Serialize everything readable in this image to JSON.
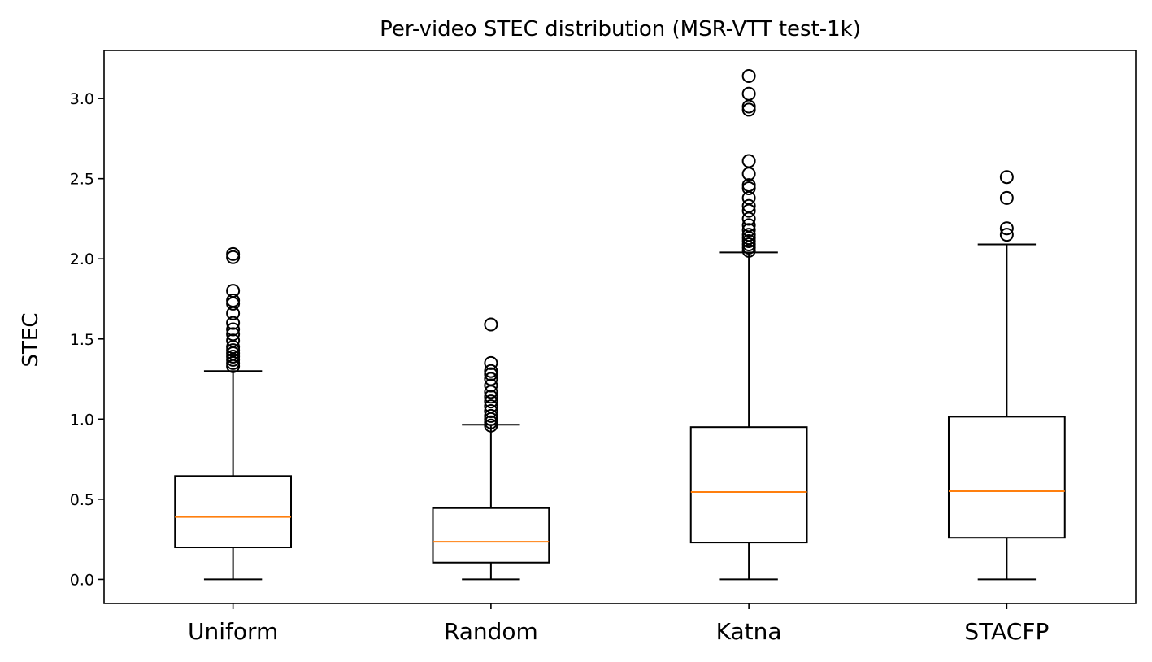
{
  "chart_data": {
    "type": "box",
    "title": "Per-video STEC distribution (MSR-VTT test-1k)",
    "xlabel": "",
    "ylabel": "STEC",
    "ylim": [
      -0.15,
      3.3
    ],
    "yticks": [
      0.0,
      0.5,
      1.0,
      1.5,
      2.0,
      2.5,
      3.0
    ],
    "ytick_labels": [
      "0.0",
      "0.5",
      "1.0",
      "1.5",
      "2.0",
      "2.5",
      "3.0"
    ],
    "categories": [
      "Uniform",
      "Random",
      "Katna",
      "STACFP"
    ],
    "boxes": [
      {
        "name": "Uniform",
        "whisker_low": 0.0,
        "q1": 0.2,
        "median": 0.39,
        "q3": 0.645,
        "whisker_high": 1.3,
        "outliers": [
          1.33,
          1.35,
          1.37,
          1.39,
          1.41,
          1.43,
          1.45,
          1.49,
          1.53,
          1.56,
          1.6,
          1.66,
          1.72,
          1.74,
          1.8,
          2.01,
          2.03
        ]
      },
      {
        "name": "Random",
        "whisker_low": 0.0,
        "q1": 0.105,
        "median": 0.235,
        "q3": 0.445,
        "whisker_high": 0.965,
        "outliers": [
          0.96,
          0.98,
          1.0,
          1.02,
          1.05,
          1.08,
          1.11,
          1.14,
          1.17,
          1.21,
          1.25,
          1.28,
          1.3,
          1.35,
          1.59
        ]
      },
      {
        "name": "Katna",
        "whisker_low": 0.0,
        "q1": 0.23,
        "median": 0.545,
        "q3": 0.95,
        "whisker_high": 2.04,
        "outliers": [
          2.05,
          2.07,
          2.09,
          2.11,
          2.13,
          2.15,
          2.18,
          2.21,
          2.25,
          2.3,
          2.33,
          2.38,
          2.44,
          2.46,
          2.53,
          2.61,
          2.93,
          2.95,
          3.03,
          3.14
        ]
      },
      {
        "name": "STACFP",
        "whisker_low": 0.0,
        "q1": 0.26,
        "median": 0.55,
        "q3": 1.015,
        "whisker_high": 2.09,
        "outliers": [
          2.15,
          2.19,
          2.38,
          2.51
        ]
      }
    ],
    "colors": {
      "box": "#000000",
      "median": "#ff7f0e",
      "background": "#ffffff"
    },
    "grid": false,
    "legend": "none"
  }
}
